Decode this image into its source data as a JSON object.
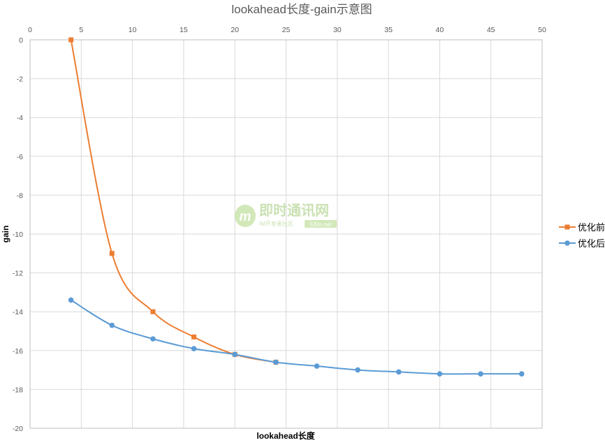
{
  "chart_data": {
    "type": "line",
    "title": "lookahead长度-gain示意图",
    "xlabel": "lookahead长度",
    "ylabel": "gain",
    "xlim": [
      0,
      50
    ],
    "ylim": [
      -20,
      0
    ],
    "x_ticks": [
      "0",
      "5",
      "10",
      "15",
      "20",
      "25",
      "30",
      "35",
      "40",
      "45",
      "50"
    ],
    "y_ticks": [
      "0",
      "-2",
      "-4",
      "-6",
      "-8",
      "-10",
      "-12",
      "-14",
      "-16",
      "-18",
      "-20"
    ],
    "x_axis_position": "top",
    "grid": true,
    "smooth": true,
    "legend_position": "right",
    "series": [
      {
        "name": "优化前",
        "color": "#ED7D31",
        "marker": "square",
        "x": [
          4,
          8,
          12,
          16,
          20,
          24
        ],
        "y": [
          0,
          -11,
          -14,
          -15.3,
          -16.2,
          -16.6
        ]
      },
      {
        "name": "优化后",
        "color": "#5B9BD5",
        "marker": "circle",
        "x": [
          4,
          8,
          12,
          16,
          20,
          24,
          28,
          32,
          36,
          40,
          44,
          48
        ],
        "y": [
          -13.4,
          -14.7,
          -15.4,
          -15.9,
          -16.2,
          -16.6,
          -16.8,
          -17,
          -17.1,
          -17.2,
          -17.2,
          -17.2
        ]
      }
    ]
  },
  "watermark": {
    "logo_letter": "m",
    "title": "即时通讯网",
    "subtitle": "IM开发者社区",
    "badge": "52im.net"
  }
}
